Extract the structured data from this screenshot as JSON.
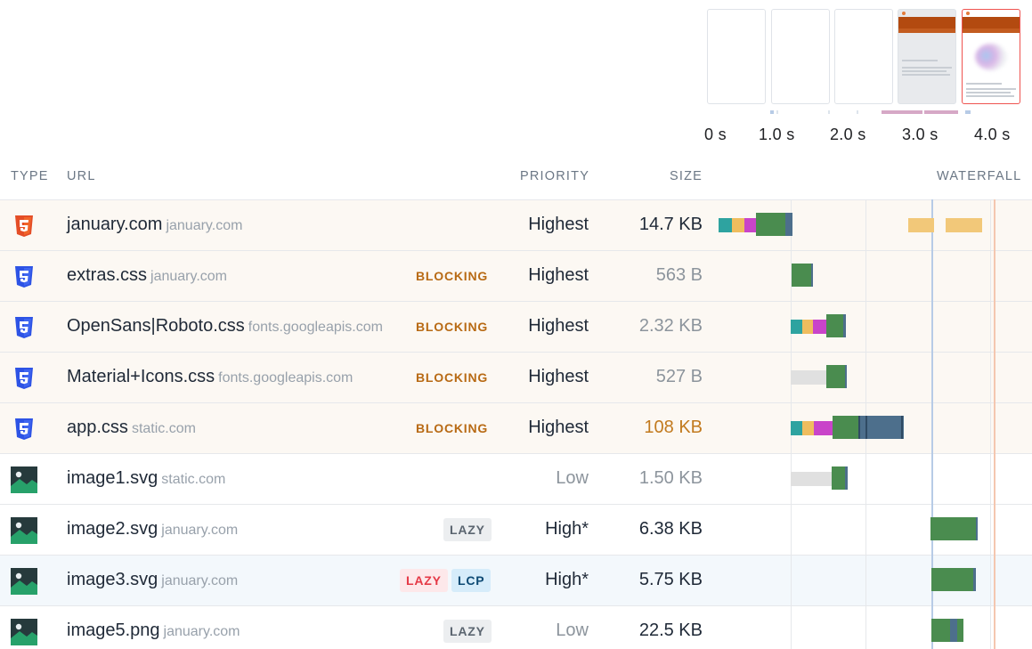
{
  "filmstrip": {
    "frames": [
      {
        "state": "blank"
      },
      {
        "state": "blank"
      },
      {
        "state": "blank"
      },
      {
        "state": "partial"
      },
      {
        "state": "complete",
        "selected": true
      }
    ],
    "timeline_labels": [
      "0 s",
      "1.0 s",
      "2.0 s",
      "3.0 s",
      "4.0 s"
    ]
  },
  "table": {
    "headers": {
      "type": "TYPE",
      "url": "URL",
      "priority": "PRIORITY",
      "size": "SIZE",
      "waterfall": "WATERFALL"
    },
    "rows": [
      {
        "type_icon": "html5-icon",
        "name": "january.com",
        "host": "january.com",
        "tags": [],
        "priority": "Highest",
        "size": "14.7 KB",
        "size_style": "dark",
        "priority_style": "dark",
        "row_style": "tint"
      },
      {
        "type_icon": "css3-icon",
        "name": "extras.css",
        "host": "january.com",
        "tags": [
          {
            "label": "BLOCKING",
            "kind": "blocking"
          }
        ],
        "priority": "Highest",
        "size": "563 B",
        "size_style": "muted",
        "priority_style": "dark",
        "row_style": "tint"
      },
      {
        "type_icon": "css3-icon",
        "name": "OpenSans|Roboto.css",
        "host": "fonts.googleapis.com",
        "tags": [
          {
            "label": "BLOCKING",
            "kind": "blocking"
          }
        ],
        "priority": "Highest",
        "size": "2.32 KB",
        "size_style": "muted",
        "priority_style": "dark",
        "row_style": "tint"
      },
      {
        "type_icon": "css3-icon",
        "name": "Material+Icons.css",
        "host": "fonts.googleapis.com",
        "tags": [
          {
            "label": "BLOCKING",
            "kind": "blocking"
          }
        ],
        "priority": "Highest",
        "size": "527 B",
        "size_style": "muted",
        "priority_style": "dark",
        "row_style": "tint"
      },
      {
        "type_icon": "css3-icon",
        "name": "app.css",
        "host": "static.com",
        "tags": [
          {
            "label": "BLOCKING",
            "kind": "blocking"
          }
        ],
        "priority": "Highest",
        "size": "108 KB",
        "size_style": "orange",
        "priority_style": "dark",
        "row_style": "tint"
      },
      {
        "type_icon": "image-icon",
        "name": "image1.svg",
        "host": "static.com",
        "tags": [],
        "priority": "Low",
        "size": "1.50 KB",
        "size_style": "muted",
        "priority_style": "muted",
        "row_style": "plain"
      },
      {
        "type_icon": "image-icon",
        "name": "image2.svg",
        "host": "january.com",
        "tags": [
          {
            "label": "LAZY",
            "kind": "lazy"
          }
        ],
        "priority": "High*",
        "size": "6.38 KB",
        "size_style": "dark",
        "priority_style": "dark",
        "row_style": "plain"
      },
      {
        "type_icon": "image-icon",
        "name": "image3.svg",
        "host": "january.com",
        "tags": [
          {
            "label": "LAZY",
            "kind": "lazy-red"
          },
          {
            "label": "LCP",
            "kind": "lcp"
          }
        ],
        "priority": "High*",
        "size": "5.75 KB",
        "size_style": "dark",
        "priority_style": "dark",
        "row_style": "hl"
      },
      {
        "type_icon": "image-icon",
        "name": "image5.png",
        "host": "january.com",
        "tags": [
          {
            "label": "LAZY",
            "kind": "lazy"
          }
        ],
        "priority": "Low",
        "size": "22.5 KB",
        "size_style": "dark",
        "priority_style": "muted",
        "row_style": "plain"
      }
    ]
  },
  "colors": {
    "dns": "#2ea3a0",
    "connect": "#efbd5e",
    "ssl": "#c944c9",
    "download": "#4a8c4f",
    "blocked": "#e0e0e0",
    "js": "#4d6f8c",
    "late": "#f2c879",
    "marker_blue": "#b7cbe6",
    "marker_orange": "#f4c7b0",
    "frame_selected": "#ef5350",
    "blocking_text": "#b86a14"
  }
}
